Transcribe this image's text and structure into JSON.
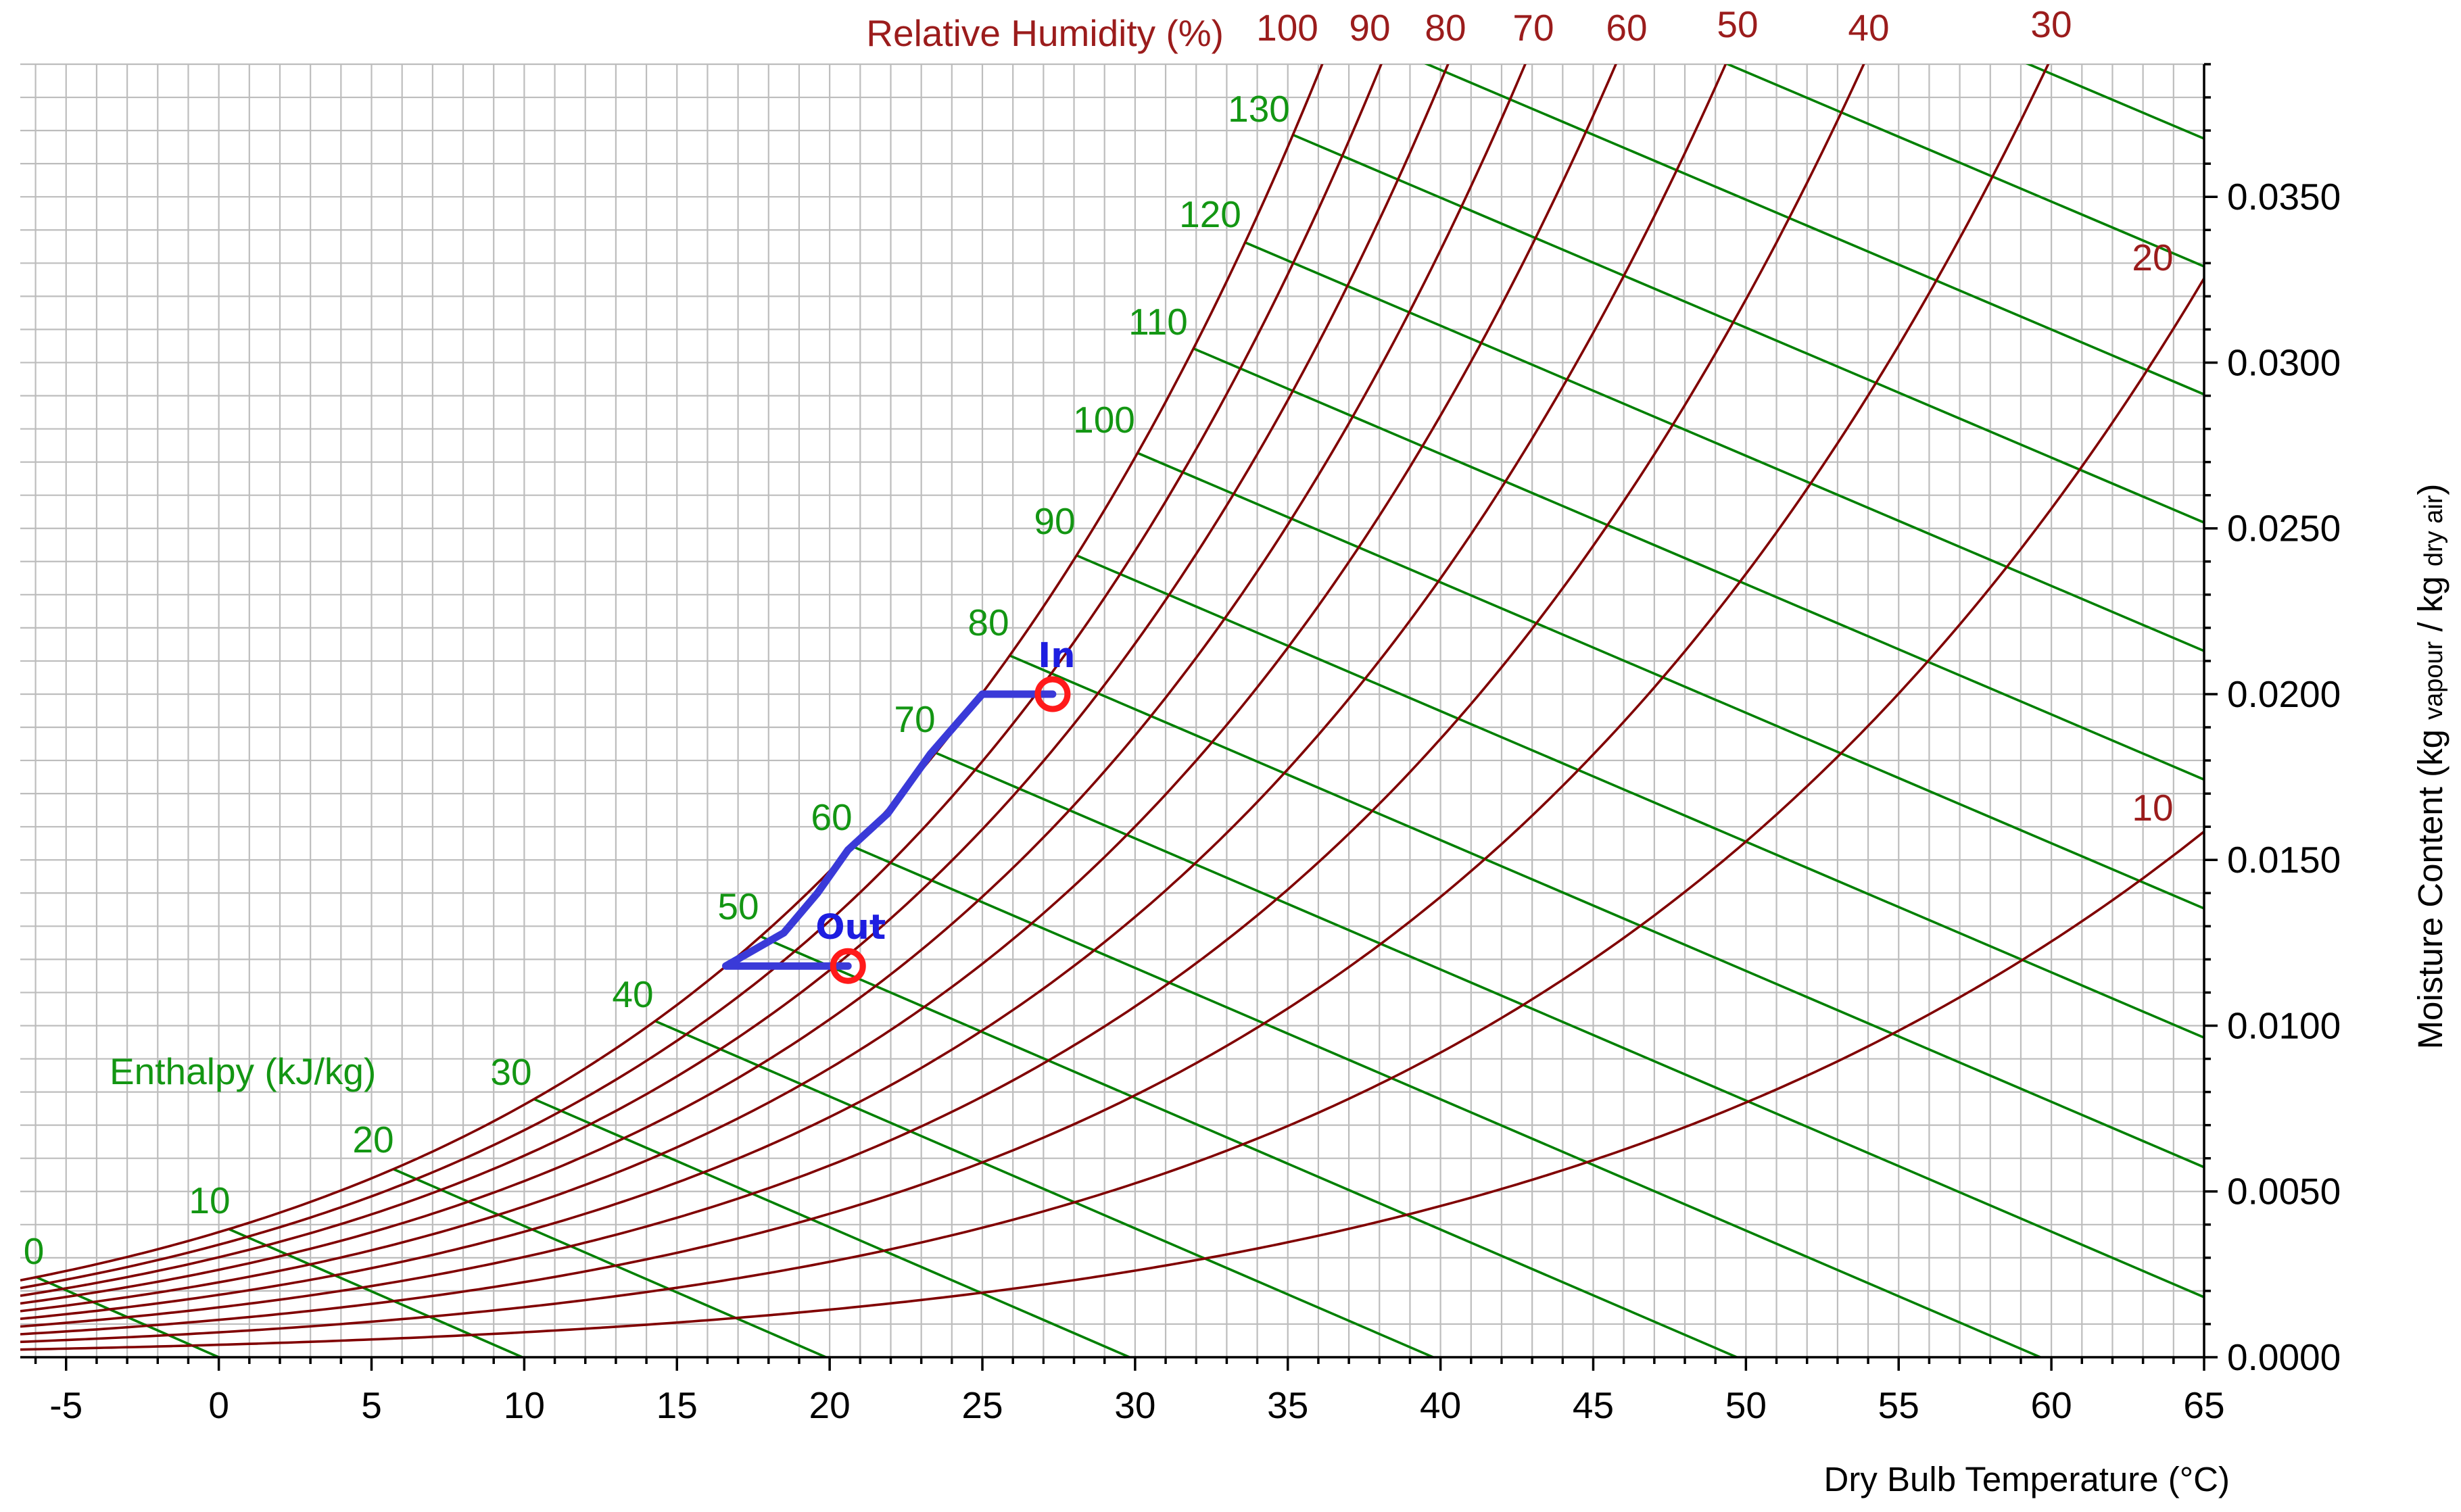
{
  "chart_data": {
    "type": "line",
    "title": "",
    "xlabel": "Dry Bulb Temperature (°C)",
    "ylabel_main": "Moisture Content (kg ",
    "ylabel_sub1": "vapour",
    "ylabel_mid": " / kg ",
    "ylabel_sub2": "dry air",
    "ylabel_end": ")",
    "rh_title": "Relative Humidity (%)",
    "enthalpy_title": "Enthalpy (kJ/kg)",
    "xlim": [
      -6.5,
      65
    ],
    "ylim": [
      0,
      0.039
    ],
    "grid": true,
    "x_ticks": [
      -5,
      0,
      5,
      10,
      15,
      20,
      25,
      30,
      35,
      40,
      45,
      50,
      55,
      60,
      65
    ],
    "x_tick_labels": [
      "-5",
      "0",
      "5",
      "10",
      "15",
      "20",
      "25",
      "30",
      "35",
      "40",
      "45",
      "50",
      "55",
      "60",
      "65"
    ],
    "y_ticks": [
      0,
      0.005,
      0.01,
      0.015,
      0.02,
      0.025,
      0.03,
      0.035
    ],
    "y_tick_labels": [
      "0.0000",
      "0.0050",
      "0.0100",
      "0.0150",
      "0.0200",
      "0.0250",
      "0.0300",
      "0.0350"
    ],
    "relative_humidity_lines": [
      10,
      20,
      30,
      40,
      50,
      60,
      70,
      80,
      90,
      100
    ],
    "relative_humidity_labels": [
      "100",
      "90",
      "80",
      "70",
      "60",
      "50",
      "40",
      "30",
      "20",
      "10"
    ],
    "enthalpy_lines": [
      0,
      10,
      20,
      30,
      40,
      50,
      60,
      70,
      80,
      90,
      100,
      110,
      120,
      130,
      140,
      150,
      160
    ],
    "enthalpy_labels": [
      "0",
      "10",
      "20",
      "30",
      "40",
      "50",
      "60",
      "70",
      "80",
      "90",
      "100",
      "110",
      "120",
      "130"
    ],
    "process_path": [
      {
        "t": 27.3,
        "w": 0.02
      },
      {
        "t": 25.0,
        "w": 0.02
      },
      {
        "t": 23.3,
        "w": 0.0182
      },
      {
        "t": 21.9,
        "w": 0.0164
      },
      {
        "t": 20.6,
        "w": 0.0153
      },
      {
        "t": 19.6,
        "w": 0.014
      },
      {
        "t": 18.5,
        "w": 0.0128
      },
      {
        "t": 16.6,
        "w": 0.0118
      },
      {
        "t": 20.6,
        "w": 0.0118
      }
    ],
    "state_points": [
      {
        "label": "In",
        "t": 27.3,
        "w": 0.02
      },
      {
        "label": "Out",
        "t": 20.6,
        "w": 0.0118
      }
    ],
    "colors": {
      "rh": "#800000",
      "enthalpy": "#008000",
      "process": "#3a3ad8",
      "point": "#ff1a1a",
      "grid": "#bdbdbd"
    }
  }
}
